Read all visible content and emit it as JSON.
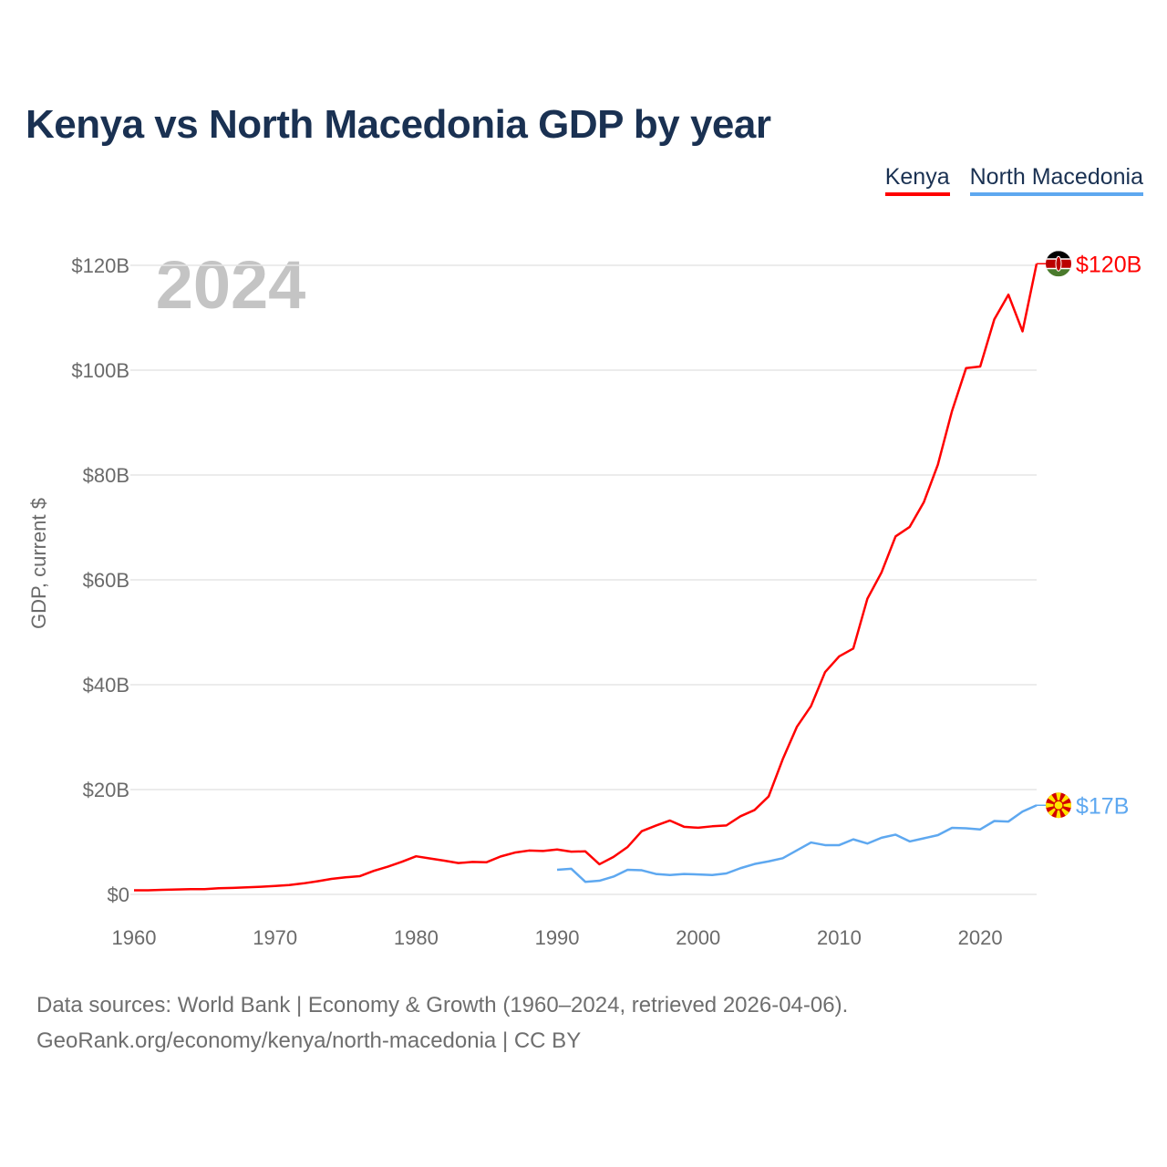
{
  "title": "Kenya vs North Macedonia GDP by year",
  "footer": {
    "line1": "Data sources: World Bank | Economy & Growth (1960–2024, retrieved 2026-04-06).",
    "line2": "GeoRank.org/economy/kenya/north-macedonia | CC BY"
  },
  "chart_data": {
    "type": "line",
    "title": "Kenya vs North Macedonia GDP by year",
    "xlabel": "",
    "ylabel": "GDP, current $",
    "year_label": "2024",
    "xlim": [
      1960,
      2024
    ],
    "ylim": [
      0,
      120
    ],
    "x_ticks": [
      1960,
      1970,
      1980,
      1990,
      2000,
      2010,
      2020
    ],
    "x_tick_labels": [
      "1960",
      "1970",
      "1980",
      "1990",
      "2000",
      "2010",
      "2020"
    ],
    "y_ticks": [
      0,
      20,
      40,
      60,
      80,
      100,
      120
    ],
    "y_tick_labels": [
      "$0",
      "$20B",
      "$40B",
      "$60B",
      "$80B",
      "$100B",
      "$120B"
    ],
    "grid": true,
    "legend_position": "top-right",
    "series": [
      {
        "name": "Kenya",
        "color": "#ff0000",
        "end_label": "$120B",
        "flag": "kenya-flag",
        "start_year": 1960,
        "values": [
          0.79,
          0.79,
          0.87,
          0.93,
          0.99,
          1.0,
          1.17,
          1.24,
          1.35,
          1.46,
          1.6,
          1.78,
          2.1,
          2.5,
          2.95,
          3.26,
          3.47,
          4.49,
          5.3,
          6.23,
          7.27,
          6.85,
          6.43,
          5.98,
          6.19,
          6.14,
          7.24,
          7.97,
          8.36,
          8.28,
          8.57,
          8.15,
          8.21,
          5.75,
          7.15,
          9.05,
          12.05,
          13.12,
          14.09,
          12.9,
          12.71,
          12.99,
          13.15,
          14.9,
          16.1,
          18.7,
          25.8,
          31.96,
          35.9,
          42.4,
          45.4,
          46.9,
          56.4,
          61.4,
          68.3,
          70.1,
          74.8,
          82.0,
          92.2,
          100.4,
          100.7,
          109.7,
          114.4,
          107.4,
          120.3
        ]
      },
      {
        "name": "North Macedonia",
        "color": "#5ea8f0",
        "end_label": "$17B",
        "flag": "north-macedonia-flag",
        "start_year": 1990,
        "values": [
          4.7,
          4.9,
          2.4,
          2.6,
          3.4,
          4.7,
          4.6,
          3.9,
          3.7,
          3.9,
          3.8,
          3.7,
          4.0,
          5.0,
          5.8,
          6.3,
          6.9,
          8.4,
          9.9,
          9.4,
          9.4,
          10.5,
          9.7,
          10.8,
          11.4,
          10.1,
          10.7,
          11.3,
          12.7,
          12.6,
          12.4,
          14.0,
          13.9,
          15.8,
          17.0
        ]
      }
    ]
  }
}
